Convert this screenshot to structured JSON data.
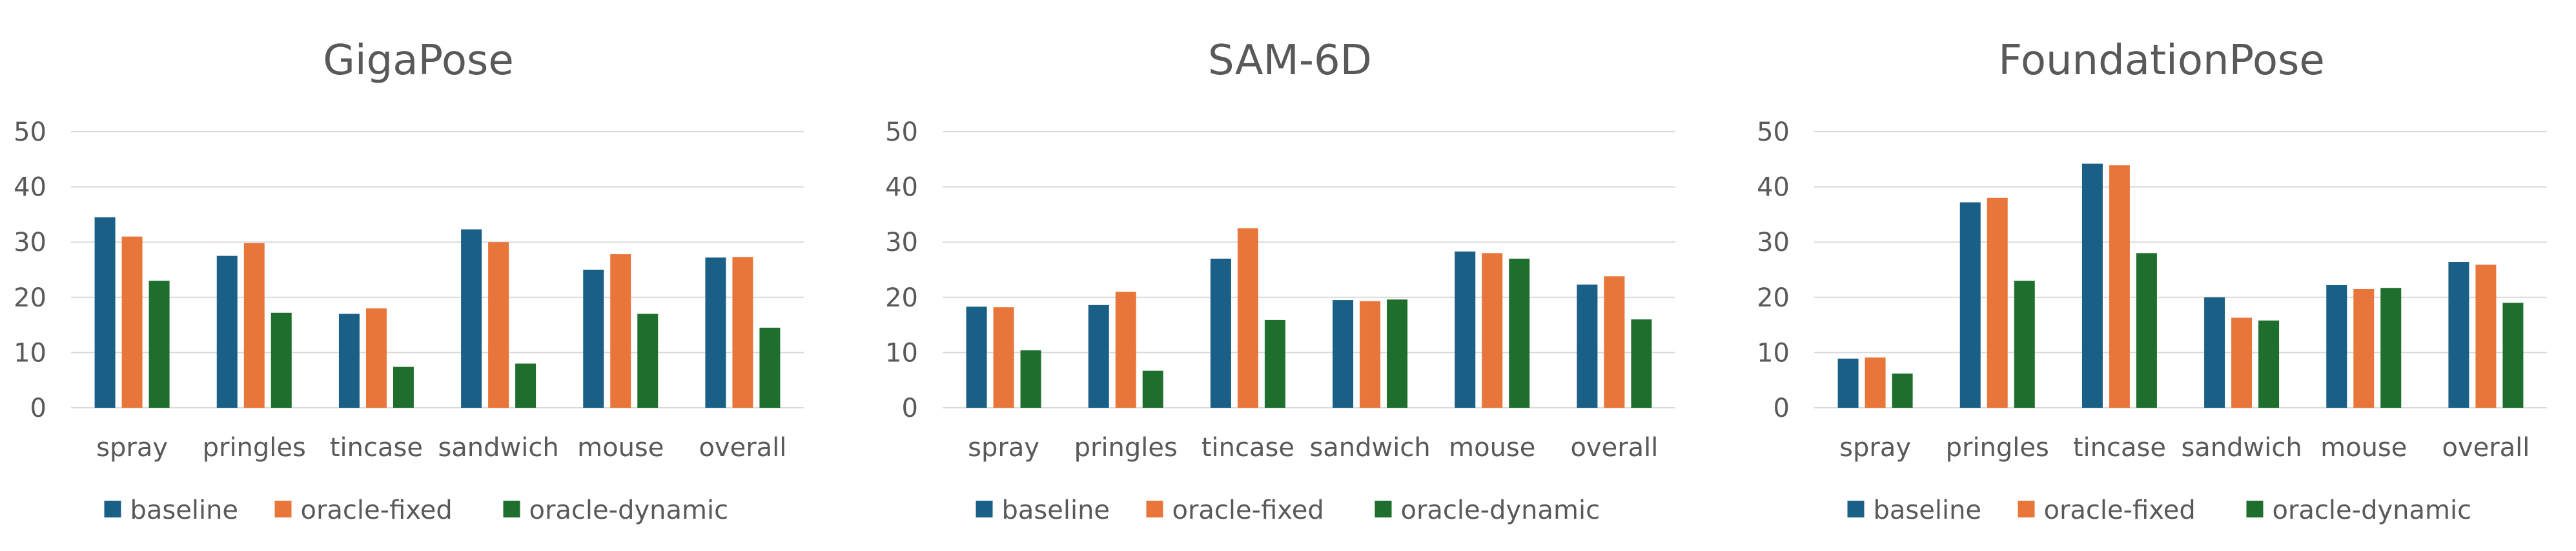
{
  "chart_data": [
    {
      "type": "bar",
      "title": "GigaPose",
      "categories": [
        "spray",
        "pringles",
        "tincase",
        "sandwich",
        "mouse",
        "overall"
      ],
      "yticks": [
        "0",
        "10",
        "20",
        "30",
        "40",
        "50"
      ],
      "ylim": [
        0,
        50
      ],
      "grid": true,
      "legend": "bottom",
      "series": [
        {
          "name": "baseline",
          "color": "#1a5f86",
          "values": [
            34.5,
            27.5,
            17.0,
            32.3,
            25.0,
            27.2
          ]
        },
        {
          "name": "oracle-fixed",
          "color": "#e8763a",
          "values": [
            31.0,
            29.8,
            18.0,
            30.0,
            27.8,
            27.3
          ]
        },
        {
          "name": "oracle-dynamic",
          "color": "#1e6e2e",
          "values": [
            23.0,
            17.2,
            7.4,
            8.0,
            17.0,
            14.5
          ]
        }
      ]
    },
    {
      "type": "bar",
      "title": "SAM-6D",
      "categories": [
        "spray",
        "pringles",
        "tincase",
        "sandwich",
        "mouse",
        "overall"
      ],
      "yticks": [
        "0",
        "10",
        "20",
        "30",
        "40",
        "50"
      ],
      "ylim": [
        0,
        50
      ],
      "grid": true,
      "legend": "bottom",
      "series": [
        {
          "name": "baseline",
          "color": "#1a5f86",
          "values": [
            18.3,
            18.6,
            27.0,
            19.5,
            28.3,
            22.3
          ]
        },
        {
          "name": "oracle-fixed",
          "color": "#e8763a",
          "values": [
            18.2,
            21.0,
            32.5,
            19.3,
            28.0,
            23.8
          ]
        },
        {
          "name": "oracle-dynamic",
          "color": "#1e6e2e",
          "values": [
            10.4,
            6.7,
            15.9,
            19.6,
            27.0,
            16.0
          ]
        }
      ]
    },
    {
      "type": "bar",
      "title": "FoundationPose",
      "categories": [
        "spray",
        "pringles",
        "tincase",
        "sandwich",
        "mouse",
        "overall"
      ],
      "yticks": [
        "0",
        "10",
        "20",
        "30",
        "40",
        "50"
      ],
      "ylim": [
        0,
        50
      ],
      "grid": true,
      "legend": "bottom",
      "series": [
        {
          "name": "baseline",
          "color": "#1a5f86",
          "values": [
            8.9,
            37.2,
            44.2,
            20.0,
            22.2,
            26.4
          ]
        },
        {
          "name": "oracle-fixed",
          "color": "#e8763a",
          "values": [
            9.1,
            38.0,
            43.9,
            16.3,
            21.5,
            25.9
          ]
        },
        {
          "name": "oracle-dynamic",
          "color": "#1e6e2e",
          "values": [
            6.2,
            23.0,
            28.0,
            15.8,
            21.7,
            19.0
          ]
        }
      ]
    }
  ]
}
